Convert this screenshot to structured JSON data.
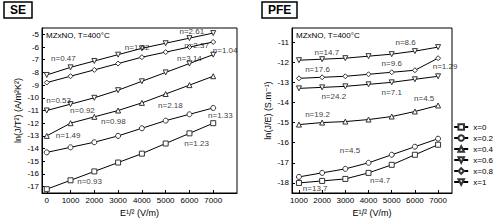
{
  "chart_data": [
    {
      "type": "line",
      "title": "SE",
      "subtitle": "MZxNO, T=400°C",
      "x_label": "E¹/² (V/m)",
      "y_label": "ln(J/T²) (A/m²K²)",
      "xlim": [
        -200,
        8000
      ],
      "xticks": [
        0,
        1000,
        2000,
        3000,
        4000,
        5000,
        6000,
        7000
      ],
      "ylim": [
        -17.5,
        -4.5
      ],
      "yticks": [
        -17,
        -16,
        -15,
        -14,
        -13,
        -12,
        -11,
        -10,
        -9,
        -8,
        -7,
        -6,
        -5
      ],
      "grid": false,
      "x": [
        0,
        1000,
        2000,
        3000,
        4000,
        5000,
        6000,
        7000
      ],
      "series": [
        {
          "name": "x=0",
          "color": "#333333",
          "marker": "square",
          "values": [
            -17.2,
            -16.5,
            -15.8,
            -15.1,
            -14.4,
            -13.6,
            -12.8,
            -12.0
          ]
        },
        {
          "name": "x=0.2",
          "color": "#333333",
          "marker": "circle",
          "values": [
            -14.3,
            -13.9,
            -13.5,
            -13.0,
            -12.4,
            -11.8,
            -11.3,
            -10.8
          ]
        },
        {
          "name": "x=0.4",
          "color": "#333333",
          "marker": "triangle",
          "values": [
            -13.0,
            -12.0,
            -11.5,
            -11.0,
            -10.4,
            -9.7,
            -9.0,
            -8.3
          ]
        },
        {
          "name": "x=0.6",
          "color": "#333333",
          "marker": "triangle_down",
          "values": [
            -11.0,
            -10.5,
            -10.0,
            -9.4,
            -8.7,
            -8.0,
            -7.3,
            -6.6
          ]
        },
        {
          "name": "x=0.8",
          "color": "#333333",
          "marker": "diamond",
          "values": [
            -8.8,
            -8.3,
            -7.8,
            -7.3,
            -6.8,
            -6.4,
            -6.0,
            -5.6
          ]
        },
        {
          "name": "x=1",
          "color": "#333333",
          "marker": "triangle_down",
          "values": [
            -8.2,
            -7.6,
            -7.1,
            -6.6,
            -6.1,
            -5.7,
            -5.3,
            -4.9
          ]
        }
      ],
      "annotations": [
        {
          "text": "n=2.61",
          "x": 6100,
          "y": -4.8
        },
        {
          "text": "n=1.62",
          "x": 3800,
          "y": -6.0
        },
        {
          "text": "n=0.47",
          "x": 700,
          "y": -6.9
        },
        {
          "text": "n=2.37",
          "x": 6300,
          "y": -5.9
        },
        {
          "text": "n=3.14",
          "x": 6000,
          "y": -6.9
        },
        {
          "text": "n=1.04",
          "x": 7500,
          "y": -6.3
        },
        {
          "text": "n=0.53",
          "x": 500,
          "y": -10.2
        },
        {
          "text": "n=0.92",
          "x": 1500,
          "y": -11.0
        },
        {
          "text": "n=0.98",
          "x": 2800,
          "y": -11.9
        },
        {
          "text": "n=2.18",
          "x": 5200,
          "y": -10.6
        },
        {
          "text": "n=1.49",
          "x": 900,
          "y": -13.0
        },
        {
          "text": "n=0.93",
          "x": 1800,
          "y": -16.6
        },
        {
          "text": "n=1.33",
          "x": 7300,
          "y": -11.4
        },
        {
          "text": "n=1.23",
          "x": 6300,
          "y": -13.6
        }
      ]
    },
    {
      "type": "line",
      "title": "PFE",
      "subtitle": "MZxNO, T=400°C",
      "x_label": "E¹/² (V/m)",
      "y_label": "ln(J/E) (S.m⁻¹)",
      "xlim": [
        700,
        7600
      ],
      "xticks": [
        1000,
        2000,
        3000,
        4000,
        5000,
        6000,
        7000
      ],
      "ylim": [
        -18.5,
        -10.3
      ],
      "yticks": [
        -18,
        -17,
        -16,
        -15,
        -14,
        -13,
        -12,
        -11
      ],
      "grid": false,
      "legend": "right",
      "x": [
        1000,
        2000,
        3000,
        4000,
        5000,
        6000,
        7000
      ],
      "series": [
        {
          "name": "x=0",
          "color": "#333333",
          "marker": "square",
          "values": [
            -18.0,
            -17.9,
            -17.8,
            -17.5,
            -17.1,
            -16.6,
            -16.1
          ]
        },
        {
          "name": "x=0.2",
          "color": "#333333",
          "marker": "circle",
          "values": [
            -17.7,
            -17.5,
            -17.3,
            -17.0,
            -16.6,
            -16.2,
            -15.8
          ]
        },
        {
          "name": "x=0.4",
          "color": "#333333",
          "marker": "triangle",
          "values": [
            -15.1,
            -15.0,
            -14.95,
            -14.85,
            -14.7,
            -14.45,
            -14.15
          ]
        },
        {
          "name": "x=0.6",
          "color": "#333333",
          "marker": "triangle_down",
          "values": [
            -13.3,
            -13.25,
            -13.2,
            -13.1,
            -13.0,
            -12.85,
            -12.7
          ]
        },
        {
          "name": "x=0.8",
          "color": "#333333",
          "marker": "diamond",
          "values": [
            -12.8,
            -12.75,
            -12.7,
            -12.6,
            -12.5,
            -12.4,
            -11.8
          ]
        },
        {
          "name": "x=1",
          "color": "#333333",
          "marker": "triangle_down",
          "values": [
            -11.9,
            -11.85,
            -11.8,
            -11.7,
            -11.6,
            -11.45,
            -11.25
          ]
        }
      ],
      "annotations": [
        {
          "text": "n=14.7",
          "x": 2200,
          "y": -11.5
        },
        {
          "text": "n=8.6",
          "x": 5600,
          "y": -11.0
        },
        {
          "text": "n=17.6",
          "x": 1800,
          "y": -12.35
        },
        {
          "text": "n=9.6",
          "x": 5000,
          "y": -12.05
        },
        {
          "text": "n=1.29",
          "x": 7300,
          "y": -12.2
        },
        {
          "text": "n=24.2",
          "x": 2500,
          "y": -13.7
        },
        {
          "text": "n=7.1",
          "x": 5000,
          "y": -13.5
        },
        {
          "text": "n=4.5",
          "x": 6400,
          "y": -13.8
        },
        {
          "text": "n=19.2",
          "x": 1800,
          "y": -14.6
        },
        {
          "text": "n=4.5",
          "x": 3200,
          "y": -16.4
        },
        {
          "text": "n=13.7",
          "x": 1700,
          "y": -18.3
        },
        {
          "text": "n=4.7",
          "x": 4500,
          "y": -17.9
        }
      ]
    }
  ]
}
